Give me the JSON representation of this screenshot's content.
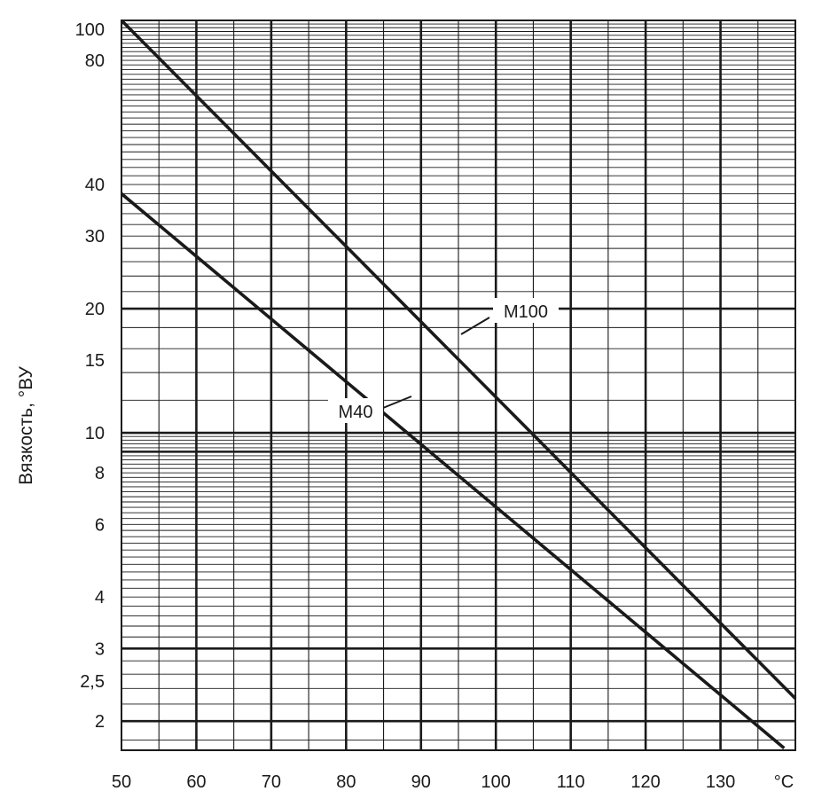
{
  "chart_data": {
    "type": "line",
    "title": "",
    "ylabel": "Вязкость, °ВУ",
    "xunit": "°C",
    "xlim": [
      50,
      140
    ],
    "y_scale": "log",
    "ylim": [
      1.7,
      100
    ],
    "x_ticks": [
      50,
      60,
      70,
      80,
      90,
      100,
      110,
      120,
      130
    ],
    "x_tick_labels": [
      "50",
      "60",
      "70",
      "80",
      "90",
      "100",
      "110",
      "120",
      "130"
    ],
    "y_ticks": [
      2,
      2.5,
      3,
      4,
      6,
      8,
      10,
      15,
      20,
      30,
      40,
      80,
      100
    ],
    "y_tick_labels": [
      "2",
      "2,5",
      "3",
      "4",
      "6",
      "8",
      "10",
      "15",
      "20",
      "30",
      "40",
      "80",
      "100"
    ],
    "grid": true,
    "series": [
      {
        "name": "М100",
        "x": [
          50,
          140
        ],
        "y": [
          100,
          2.27
        ]
      },
      {
        "name": "М40",
        "x": [
          50,
          138.5
        ],
        "y": [
          38,
          1.72
        ]
      }
    ]
  }
}
